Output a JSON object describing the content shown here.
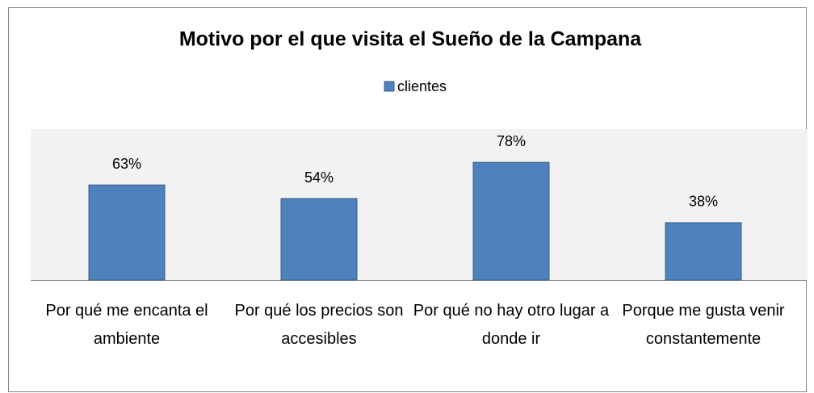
{
  "chart_data": {
    "type": "bar",
    "title": "Motivo por el que visita el Sueño de la Campana",
    "categories": [
      "Por qué me encanta el ambiente",
      "Por qué los precios son accesibles",
      "Por qué no hay otro lugar a donde ir",
      "Porque me gusta venir constantemente"
    ],
    "series": [
      {
        "name": "clientes",
        "color": "#4f81bd",
        "values": [
          63,
          54,
          78,
          38
        ],
        "value_labels": [
          "63%",
          "54%",
          "78%",
          "38%"
        ]
      }
    ],
    "ylim": [
      0,
      100
    ]
  }
}
